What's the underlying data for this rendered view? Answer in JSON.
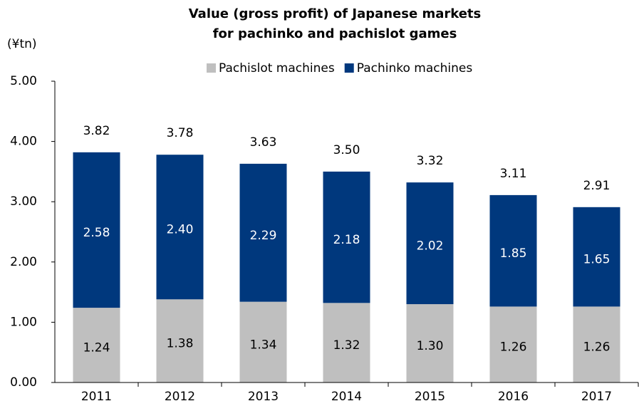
{
  "chart_data": {
    "type": "stacked_bar",
    "title": [
      "Value (gross profit) of Japanese markets",
      "for pachinko and pachislot games"
    ],
    "y_axis_label": "(¥tn)",
    "categories": [
      "2011",
      "2012",
      "2013",
      "2014",
      "2015",
      "2016",
      "2017"
    ],
    "series": [
      {
        "name": "Pachislot machines",
        "color": "#bfbfbf",
        "label_color": "#000000",
        "values": [
          1.24,
          1.38,
          1.34,
          1.32,
          1.3,
          1.26,
          1.26
        ],
        "value_labels": [
          "1.24",
          "1.38",
          "1.34",
          "1.32",
          "1.30",
          "1.26",
          "1.26"
        ]
      },
      {
        "name": "Pachinko machines",
        "color": "#00387d",
        "label_color": "#ffffff",
        "values": [
          2.58,
          2.4,
          2.29,
          2.18,
          2.02,
          1.85,
          1.65
        ],
        "value_labels": [
          "2.58",
          "2.40",
          "2.29",
          "2.18",
          "2.02",
          "1.85",
          "1.65"
        ]
      }
    ],
    "totals": [
      3.82,
      3.78,
      3.63,
      3.5,
      3.32,
      3.11,
      2.91
    ],
    "total_labels": [
      "3.82",
      "3.78",
      "3.63",
      "3.50",
      "3.32",
      "3.11",
      "2.91"
    ],
    "ylim": [
      0,
      5
    ],
    "yticks": [
      {
        "value": 0,
        "label": "0.00"
      },
      {
        "value": 1,
        "label": "1.00"
      },
      {
        "value": 2,
        "label": "2.00"
      },
      {
        "value": 3,
        "label": "3.00"
      },
      {
        "value": 4,
        "label": "4.00"
      },
      {
        "value": 5,
        "label": "5.00"
      }
    ],
    "legend": "top"
  }
}
